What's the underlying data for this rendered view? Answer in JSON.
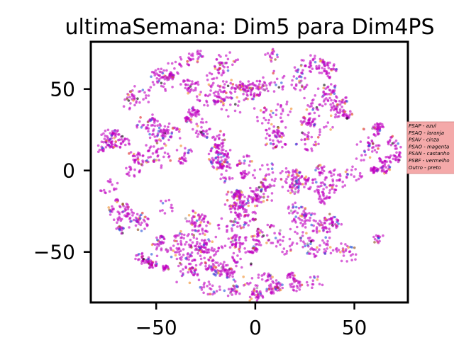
{
  "chart_data": {
    "type": "scatter",
    "title": "ultimaSemana: Dim5 para Dim4PS",
    "xlabel": "",
    "ylabel": "",
    "xlim": [
      -83,
      77
    ],
    "ylim": [
      -81,
      79
    ],
    "xticks": [
      -50,
      0,
      50
    ],
    "yticks": [
      -50,
      0,
      50
    ],
    "xtick_labels": [
      "−50",
      "0",
      "50"
    ],
    "ytick_labels": [
      "−50",
      "0",
      "50"
    ],
    "grid": false,
    "point_cloud": {
      "shape": "disk",
      "center": [
        -3,
        -1
      ],
      "radius_x": 78,
      "radius_y": 79
    },
    "legend": {
      "placement": "right",
      "background": "#f4a9a9",
      "entries": [
        {
          "label": "PSAP - azul",
          "color": "#1f4fd8"
        },
        {
          "label": "PSAQ - laranja",
          "color": "#f08a24"
        },
        {
          "label": "PSAV - cinza",
          "color": "#8c8c8c"
        },
        {
          "label": "PSAO - magenta",
          "color": "#c000c0"
        },
        {
          "label": "PSAN - castanho",
          "color": "#8b4513"
        },
        {
          "label": "PSBF - vermelho",
          "color": "#e02020"
        },
        {
          "label": "Outro - preto",
          "color": "#000000"
        }
      ]
    },
    "series": [
      {
        "name": "PSAP - azul",
        "color": "#1f4fd8",
        "share": 0.06
      },
      {
        "name": "PSAQ - laranja",
        "color": "#f08a24",
        "share": 0.06
      },
      {
        "name": "PSAV - cinza",
        "color": "#8c8c8c",
        "share": 0.01
      },
      {
        "name": "PSAO - magenta",
        "color": "#c000c0",
        "share": 0.84
      },
      {
        "name": "PSAN - castanho",
        "color": "#8b4513",
        "share": 0.01
      },
      {
        "name": "PSBF - vermelho",
        "color": "#e02020",
        "share": 0.01
      },
      {
        "name": "Outro - preto",
        "color": "#000000",
        "share": 0.01
      }
    ]
  }
}
